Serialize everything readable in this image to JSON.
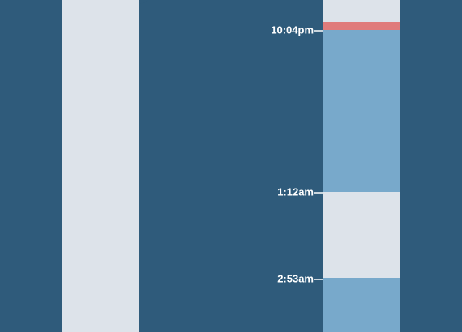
{
  "timeline": {
    "markers": [
      {
        "label": "10:04pm"
      },
      {
        "label": "1:12am"
      },
      {
        "label": "2:53am"
      }
    ]
  }
}
